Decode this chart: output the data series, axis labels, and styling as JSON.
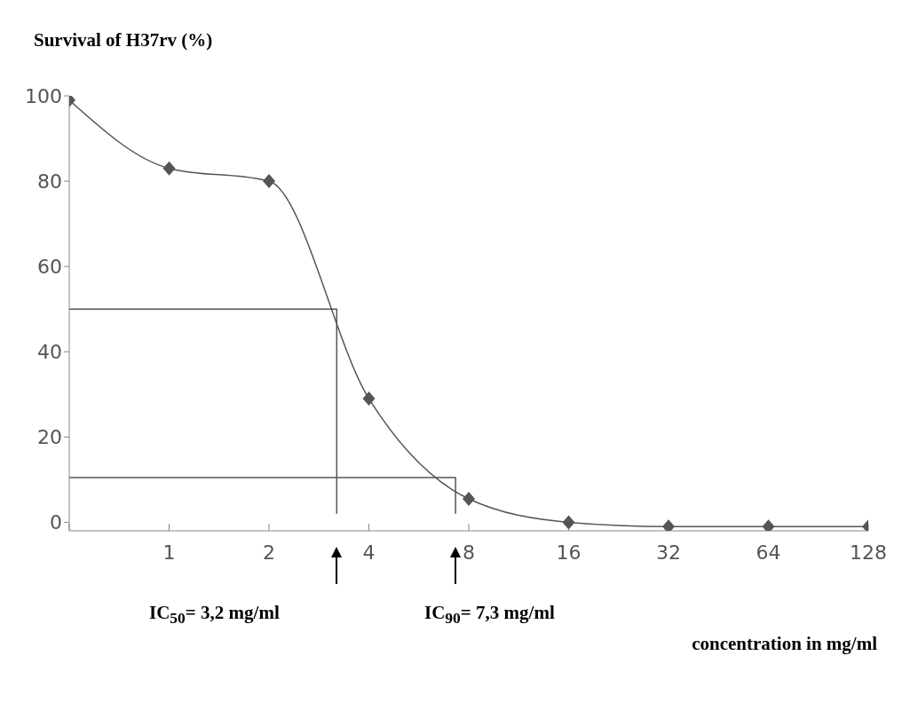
{
  "chart_data": {
    "type": "line",
    "ylabel": "Survival of H37rv (%)",
    "xlabel": "concentration in mg/ml",
    "log": "x",
    "xlim": [
      0.5,
      128
    ],
    "xticks": [
      {
        "value": 0.5,
        "label": null
      },
      1,
      2,
      4,
      8,
      16,
      32,
      64,
      128
    ],
    "ylim": [
      -2,
      100
    ],
    "yticks": [
      0,
      20,
      40,
      60,
      80,
      100
    ],
    "grid": false,
    "legend": false,
    "series": [
      {
        "color": "#555555",
        "marker": "diamond",
        "x": [
          0.5,
          1,
          2,
          4,
          8,
          16,
          32,
          64,
          128
        ],
        "values": [
          99,
          83,
          80,
          29,
          5.5,
          0,
          -1,
          -1,
          -1
        ]
      },
      {
        "color": "#555555",
        "marker": "none",
        "type": "step",
        "x": [
          0.5,
          3.2,
          3.2
        ],
        "values": [
          50,
          50,
          2
        ]
      },
      {
        "color": "#555555",
        "marker": "none",
        "type": "step",
        "x": [
          0.5,
          7.3,
          7.3
        ],
        "values": [
          10.5,
          10.5,
          2
        ]
      }
    ],
    "annotations": [
      "IC$_{50}$= 3,2 mg/ml",
      "IC$_{90}$= 7,3 mg/ml"
    ]
  }
}
